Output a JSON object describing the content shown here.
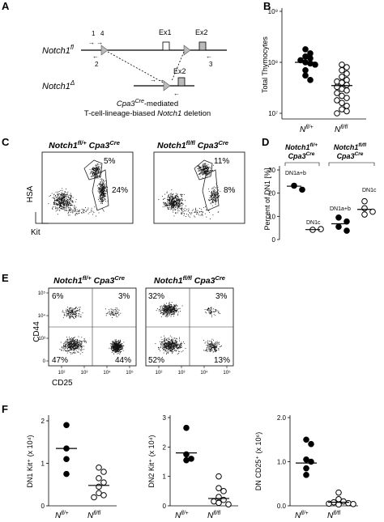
{
  "panels": {
    "A": "A",
    "B": "B",
    "C": "C",
    "D": "D",
    "E": "E",
    "F": "F"
  },
  "panelA": {
    "notch1fl": "Notch1",
    "notch1fl_sup": "fl",
    "notch1delta": "Notch1",
    "notch1delta_sup": "Δ",
    "ex1": "Ex1",
    "ex2": "Ex2",
    "ex2b": "Ex2",
    "primer1": "1",
    "primer4": "4",
    "primer2": "2",
    "primer3": "3",
    "caption_line1_a": "Cpa3",
    "caption_line1_sup": "Cre",
    "caption_line1_b": "-mediated",
    "caption_line2_a": "T-cell-lineage-biased ",
    "caption_line2_b": "Notch1",
    "caption_line2_c": " deletion"
  },
  "panelC": {
    "left_title_a": "Notch1",
    "left_title_sup": "fl/+",
    "left_title_b": " Cpa3",
    "left_title_sup2": "Cre",
    "right_title_a": "Notch1",
    "right_title_sup": "fl/fl",
    "right_title_b": " Cpa3",
    "right_title_sup2": "Cre",
    "left_upper_pct": "5%",
    "left_lower_pct": "24%",
    "right_upper_pct": "11%",
    "right_lower_pct": "8%",
    "ylabel": "HSA",
    "xlabel": "Kit"
  },
  "panelE": {
    "left_title_a": "Notch1",
    "left_title_sup": "fl/+",
    "left_title_b": " Cpa3",
    "left_title_sup2": "Cre",
    "right_title_a": "Notch1",
    "right_title_sup": "fl/fl",
    "right_title_b": " Cpa3",
    "right_title_sup2": "Cre",
    "left_q": [
      "6%",
      "3%",
      "47%",
      "44%"
    ],
    "right_q": [
      "32%",
      "3%",
      "52%",
      "13%"
    ],
    "ylabel": "CD44",
    "xlabel": "CD25",
    "xticks": [
      "10²",
      "10³",
      "10⁴",
      "10⁵"
    ],
    "yticks": [
      "10⁵",
      "10⁴",
      "10³",
      "0"
    ]
  },
  "panelD": {
    "group1_a": "Notch1",
    "group1_sup": "fl/+",
    "group1_b": "Cpa3",
    "group1_sup2": "Cre",
    "group2_a": "Notch1",
    "group2_sup": "fl/fl",
    "group2_b": "Cpa3",
    "group2_sup2": "Cre",
    "lbl_dn1ab_1": "DN1a+b",
    "lbl_dn1c_1": "DN1c",
    "lbl_dn1ab_2": "DN1a+b",
    "lbl_dn1c_2": "DN1c"
  },
  "fx": {
    "lbl_flplus": "N",
    "lbl_flplus_sup": "fl/+",
    "lbl_flfl": "N",
    "lbl_flfl_sup": "fl/fl"
  },
  "chart_data": [
    {
      "panel": "B",
      "type": "scatter",
      "ylabel": "Total Thymocytes",
      "yscale": "log",
      "ylim": [
        10000000,
        1000000000
      ],
      "ytick_labels": [
        "10⁷",
        "10⁸",
        "10⁹"
      ],
      "categories": [
        "Nfl/+",
        "Nfl/fl"
      ],
      "series": [
        {
          "name": "Nfl/+",
          "filled": true,
          "values": [
            180000000,
            150000000,
            130000000,
            120000000,
            110000000,
            100000000,
            95000000,
            90000000,
            70000000,
            55000000,
            45000000
          ],
          "median": 100000000
        },
        {
          "name": "Nfl/fl",
          "filled": false,
          "values": [
            90000000,
            80000000,
            70000000,
            60000000,
            52000000,
            45000000,
            42000000,
            40000000,
            36000000,
            33000000,
            30000000,
            28000000,
            25000000,
            22000000,
            20000000,
            18000000,
            16000000,
            14000000,
            12000000,
            11000000,
            10000000
          ],
          "median": 35000000
        }
      ]
    },
    {
      "panel": "D",
      "type": "scatter",
      "ylabel": "Percent of DN1 [%]",
      "ylim": [
        0,
        30
      ],
      "ytick_labels": [
        "0",
        "10",
        "20",
        "30"
      ],
      "series": [
        {
          "group": "Notch1fl/+ Cpa3Cre",
          "subset": "DN1a+b",
          "filled": true,
          "values": [
            23.2,
            21.5
          ],
          "median": 23
        },
        {
          "group": "Notch1fl/+ Cpa3Cre",
          "subset": "DN1c",
          "filled": false,
          "values": [
            4.2,
            4.5
          ],
          "median": 4.3
        },
        {
          "group": "Notch1fl/fl Cpa3Cre",
          "subset": "DN1a+b",
          "filled": true,
          "values": [
            9.5,
            7.8,
            5.5,
            3.8
          ],
          "median": 6.8
        },
        {
          "group": "Notch1fl/fl Cpa3Cre",
          "subset": "DN1c",
          "filled": false,
          "values": [
            16.5,
            13.5,
            12.0,
            10.8
          ],
          "median": 13.0
        }
      ]
    },
    {
      "panel": "F1",
      "type": "scatter",
      "ylabel": "DN1 Kit⁺ (x 10⁴)",
      "ylim": [
        0,
        2
      ],
      "ytick_labels": [
        "0",
        "1",
        "2"
      ],
      "categories": [
        "Nfl/+",
        "Nfl/fl"
      ],
      "series": [
        {
          "name": "Nfl/+",
          "filled": true,
          "values": [
            1.9,
            1.35,
            1.1,
            0.75
          ],
          "median": 1.35
        },
        {
          "name": "Nfl/fl",
          "filled": false,
          "values": [
            0.9,
            0.8,
            0.65,
            0.55,
            0.45,
            0.3,
            0.25,
            0.2
          ],
          "median": 0.48
        }
      ]
    },
    {
      "panel": "F2",
      "type": "scatter",
      "ylabel": "DN2 Kit⁺ (x 10⁴)",
      "ylim": [
        0,
        3
      ],
      "ytick_labels": [
        "0",
        "1",
        "2",
        "3"
      ],
      "categories": [
        "Nfl/+",
        "Nfl/fl"
      ],
      "series": [
        {
          "name": "Nfl/+",
          "filled": true,
          "values": [
            2.65,
            1.75,
            1.6,
            1.55
          ],
          "median": 1.8
        },
        {
          "name": "Nfl/fl",
          "filled": false,
          "values": [
            1.0,
            0.6,
            0.5,
            0.3,
            0.2,
            0.15,
            0.1,
            0.05
          ],
          "median": 0.25
        }
      ]
    },
    {
      "panel": "F3",
      "type": "scatter",
      "ylabel": "DN CD25⁺ (x 10⁶)",
      "ylim": [
        0,
        2
      ],
      "ytick_labels": [
        "0.0",
        "1.0",
        "2.0"
      ],
      "categories": [
        "Nfl/+",
        "Nfl/fl"
      ],
      "series": [
        {
          "name": "Nfl/+",
          "filled": true,
          "values": [
            1.5,
            1.4,
            1.05,
            1.0,
            0.85,
            0.7
          ],
          "median": 0.97
        },
        {
          "name": "Nfl/fl",
          "filled": false,
          "values": [
            0.3,
            0.15,
            0.1,
            0.08,
            0.06,
            0.05,
            0.04,
            0.03
          ],
          "median": 0.08
        }
      ]
    }
  ]
}
